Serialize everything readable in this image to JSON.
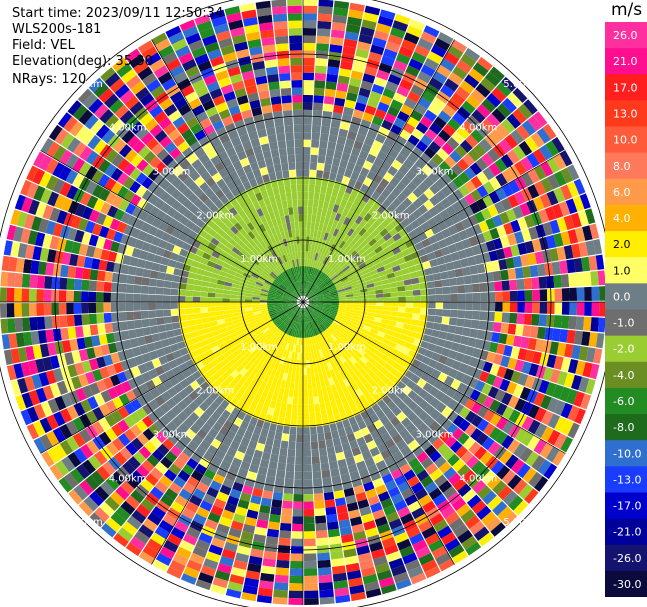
{
  "header": {
    "start_time": "Start time: 2023/09/11 12:50:34",
    "site": "WLS200s-181",
    "field": "Field: VEL",
    "elevation": "Elevation(deg): 35.30",
    "nrays": "NRays: 120"
  },
  "colorbar": {
    "unit": "m/s",
    "ticks": [
      "26.0",
      "21.0",
      "17.0",
      "13.0",
      "10.0",
      "8.0",
      "6.0",
      "4.0",
      "2.0",
      "1.0",
      "0.0",
      "-1.0",
      "-2.0",
      "-4.0",
      "-6.0",
      "-8.0",
      "-10.0",
      "-13.0",
      "-17.0",
      "-21.0",
      "-26.0",
      "-30.0"
    ],
    "colors": [
      "#ff2fa0",
      "#ff0f8f",
      "#ff1f1f",
      "#ff3a1c",
      "#ff5a3a",
      "#ff7a5a",
      "#ff9a4a",
      "#ffb000",
      "#ffee00",
      "#ffff66",
      "#6e7e86",
      "#6e6e6e",
      "#9acd32",
      "#6b8e23",
      "#228b22",
      "#1e6b1e",
      "#2f6fd0",
      "#1a3cff",
      "#0000cd",
      "#00009a",
      "#141470",
      "#0a0a3c"
    ]
  },
  "chart_data": {
    "type": "heatmap",
    "projection": "polar-ppi",
    "field": "VEL",
    "units": "m/s",
    "n_rays": 120,
    "max_range_km": 6.0,
    "range_rings_km": [
      1.0,
      2.0,
      3.0,
      4.0,
      5.0
    ],
    "range_labels": [
      "1.00km",
      "2.00km",
      "3.00km",
      "4.00km",
      "5.00km"
    ],
    "value_range": [
      -30.0,
      30.0
    ],
    "pattern_by_range": [
      {
        "range_km": [
          0.0,
          0.5
        ],
        "value": -6.0
      },
      {
        "range_km": [
          0.5,
          2.0
        ],
        "sector": "north",
        "value": -2.0
      },
      {
        "range_km": [
          0.5,
          2.0
        ],
        "sector": "south",
        "value": 2.0
      },
      {
        "range_km": [
          2.0,
          3.0
        ],
        "value": 0.0
      },
      {
        "range_km": [
          3.0,
          6.0
        ],
        "value": "noise"
      }
    ]
  }
}
